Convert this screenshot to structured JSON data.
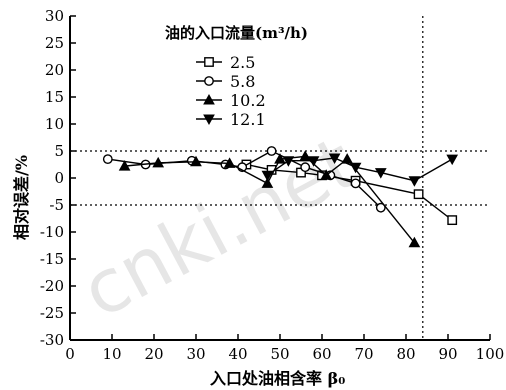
{
  "chart_data": {
    "type": "line",
    "title": "",
    "xlabel": "入口处油相含率 β₀",
    "ylabel": "相对误差/%",
    "xlim": [
      0,
      100
    ],
    "ylim": [
      -30,
      30
    ],
    "x_ticks": [
      0,
      10,
      20,
      30,
      40,
      50,
      60,
      70,
      80,
      90,
      100
    ],
    "y_ticks": [
      30,
      25,
      20,
      15,
      10,
      5,
      0,
      -5,
      -10,
      -15,
      -20,
      -25,
      -30
    ],
    "x_tick_labels": [
      "0",
      "10",
      "20",
      "30",
      "40",
      "50",
      "60",
      "70",
      "80",
      "90",
      "100"
    ],
    "y_tick_labels": [
      "30",
      "25",
      "20",
      "15",
      "10",
      "5",
      "0",
      "-5",
      "-10",
      "-15",
      "-20",
      "-25",
      "-30"
    ],
    "reference_lines": {
      "horizontal": [
        5,
        -5
      ],
      "vertical": [
        84
      ]
    },
    "grid": false,
    "legend": {
      "title": "油的入口流量(m³/h)",
      "placement": "top-center"
    },
    "series": [
      {
        "name": "2.5",
        "marker": "square-open",
        "points": [
          [
            42,
            2.5
          ],
          [
            48,
            1.5
          ],
          [
            55,
            1.0
          ],
          [
            60,
            0.5
          ],
          [
            68,
            -0.5
          ],
          [
            83,
            -3.0
          ],
          [
            91,
            -7.8
          ]
        ]
      },
      {
        "name": "5.8",
        "marker": "circle-open",
        "points": [
          [
            9,
            3.5
          ],
          [
            18,
            2.5
          ],
          [
            29,
            3.2
          ],
          [
            37,
            2.5
          ],
          [
            41,
            2.0
          ],
          [
            48,
            5.0
          ],
          [
            56,
            2.0
          ],
          [
            62,
            0.5
          ],
          [
            68,
            -1.0
          ],
          [
            74,
            -5.5
          ]
        ]
      },
      {
        "name": "10.2",
        "marker": "triangle-up-filled",
        "points": [
          [
            13,
            2.2
          ],
          [
            21,
            2.8
          ],
          [
            30,
            3.0
          ],
          [
            38,
            2.7
          ],
          [
            47,
            -1.0
          ],
          [
            50,
            3.5
          ],
          [
            56,
            4.0
          ],
          [
            61,
            0.5
          ],
          [
            66,
            3.5
          ],
          [
            82,
            -12.0
          ]
        ]
      },
      {
        "name": "12.1",
        "marker": "triangle-down-filled",
        "points": [
          [
            47,
            0.5
          ],
          [
            52,
            3.2
          ],
          [
            58,
            3.2
          ],
          [
            63,
            3.7
          ],
          [
            68,
            2.0
          ],
          [
            74,
            1.0
          ],
          [
            82,
            -0.5
          ],
          [
            91,
            3.5
          ]
        ]
      }
    ]
  },
  "watermark": "cnki.net",
  "colors": {
    "ink": "#000000",
    "background": "#ffffff",
    "watermark": "#e6e6e6"
  }
}
